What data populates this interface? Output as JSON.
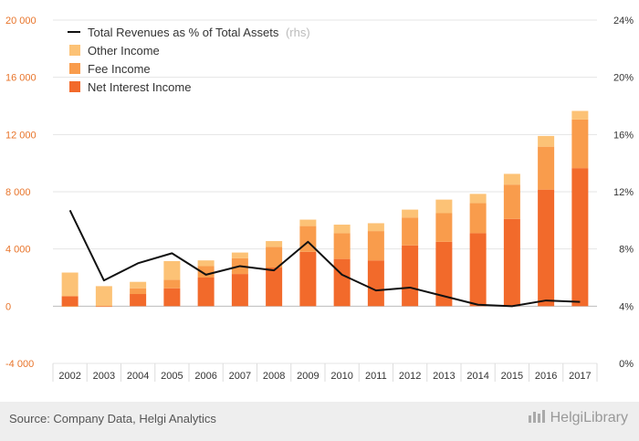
{
  "chart_data": {
    "type": "bar",
    "categories": [
      "2002",
      "2003",
      "2004",
      "2005",
      "2006",
      "2007",
      "2008",
      "2009",
      "2010",
      "2011",
      "2012",
      "2013",
      "2014",
      "2015",
      "2016",
      "2017"
    ],
    "series": [
      {
        "name": "Net Interest Income",
        "color": "#f26a2b",
        "values": [
          700,
          -50,
          850,
          1250,
          2000,
          2250,
          2700,
          3800,
          3300,
          3200,
          4250,
          4500,
          5100,
          6100,
          8150,
          9650
        ]
      },
      {
        "name": "Fee Income",
        "color": "#f99c4c",
        "values": [
          -50,
          0,
          400,
          600,
          800,
          1100,
          1450,
          1800,
          1800,
          2050,
          1950,
          2000,
          2100,
          2400,
          3000,
          3400
        ]
      },
      {
        "name": "Other Income",
        "color": "#fcc276",
        "values": [
          1650,
          1400,
          450,
          1300,
          400,
          400,
          400,
          450,
          600,
          550,
          550,
          950,
          650,
          750,
          750,
          600
        ]
      }
    ],
    "line": {
      "name": "Total Revenues as % of Total Assets",
      "note": "(rhs)",
      "color": "#111111",
      "values": [
        10.7,
        5.8,
        7.0,
        7.7,
        6.2,
        6.8,
        6.5,
        8.5,
        6.2,
        5.1,
        5.3,
        4.7,
        4.1,
        4.0,
        4.4,
        4.3
      ]
    },
    "y_left": {
      "min": -4000,
      "max": 20000,
      "ticks": [
        "-4 000",
        "0",
        "4 000",
        "8 000",
        "12 000",
        "16 000",
        "20 000"
      ]
    },
    "y_right": {
      "min": 0,
      "max": 24,
      "ticks": [
        "0%",
        "4%",
        "8%",
        "12%",
        "16%",
        "20%",
        "24%"
      ]
    },
    "legend_position": "top-left",
    "grid": true
  },
  "footer": {
    "source": "Source: Company Data, Helgi Analytics",
    "brand": "HelgiLibrary",
    "brand_icon": "chart-bars-icon"
  }
}
